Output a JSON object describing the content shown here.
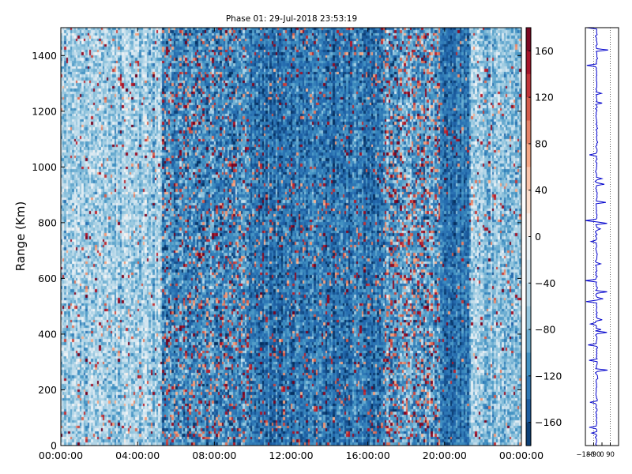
{
  "chart_data": [
    {
      "type": "heatmap",
      "title": "Phase 01: 29-Jul-2018 23:53:19",
      "ylabel": "Range (Km)",
      "xlabel": "",
      "x_ticks": [
        "00:00:00",
        "04:00:00",
        "08:00:00",
        "12:00:00",
        "16:00:00",
        "20:00:00",
        "00:00:00"
      ],
      "xlim_hours": [
        0,
        24
      ],
      "y_ticks": [
        0,
        200,
        400,
        600,
        800,
        1000,
        1200,
        1400
      ],
      "ylim": [
        0,
        1500
      ],
      "colorbar": {
        "ticks": [
          160,
          120,
          80,
          40,
          0,
          -40,
          -80,
          -120,
          -160
        ],
        "range": [
          -180,
          180
        ],
        "colormap": "RdBu_r"
      },
      "grid": false,
      "description_bands": [
        {
          "from_hour": 0.0,
          "to_hour": 5.3,
          "mean_value": -60,
          "spread": 45,
          "outliers": 0.04
        },
        {
          "from_hour": 5.3,
          "to_hour": 9.8,
          "mean_value": -115,
          "spread": 50,
          "outliers": 0.14
        },
        {
          "from_hour": 9.8,
          "to_hour": 16.8,
          "mean_value": -130,
          "spread": 40,
          "outliers": 0.07
        },
        {
          "from_hour": 16.8,
          "to_hour": 19.8,
          "mean_value": -100,
          "spread": 55,
          "outliers": 0.2
        },
        {
          "from_hour": 19.8,
          "to_hour": 21.3,
          "mean_value": -135,
          "spread": 35,
          "outliers": 0.03
        },
        {
          "from_hour": 21.3,
          "to_hour": 24.0,
          "mean_value": -70,
          "spread": 45,
          "outliers": 0.04
        }
      ]
    },
    {
      "type": "line",
      "x_ticks": [
        "-180",
        "-90",
        "0",
        "90"
      ],
      "xlim": [
        -180,
        180
      ],
      "ylim": [
        0,
        1500
      ],
      "series_color": "#0000cc"
    }
  ]
}
